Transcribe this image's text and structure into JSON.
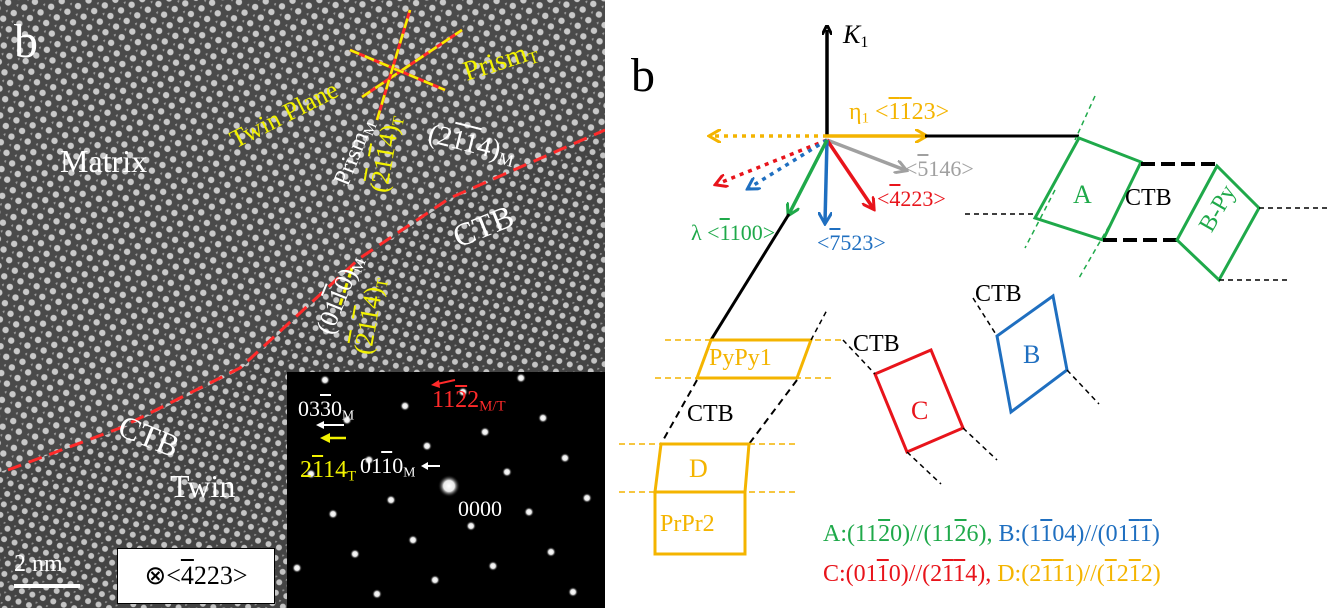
{
  "left_panel": {
    "panel_label": "b",
    "matrix_label": "Matrix",
    "twin_label": "Twin",
    "ctb_label_1": "CTB",
    "ctb_label_2": "CTB",
    "twin_plane_label": "Twin Plane",
    "prism_m_main": "Prism",
    "prism_m_sub": "M",
    "prism_t_main": "Prism",
    "prism_t_sub": "T",
    "plane_21b14_m": {
      "a": "(2",
      "b": "1",
      "c": "1",
      "d": "4)",
      "sub": "M"
    },
    "plane_2b11b4_t_top": {
      "a": "(",
      "b": "2",
      "c": "1",
      "d": "1",
      "e": "4)",
      "sub": "T"
    },
    "plane_01b10_m": {
      "a": "(01",
      "b": "1",
      "c": "0)",
      "sub": "M"
    },
    "plane_2b11b4_t_bottom": {
      "a": "(",
      "b": "2",
      "c": "1",
      "d": "1",
      "e": "4)",
      "sub": "T"
    },
    "scale_bar": "2 nm",
    "zone_axis": {
      "a": "⊗<",
      "b": "4",
      "c": "223>"
    },
    "colors": {
      "overlay_white": "#ffffff",
      "overlay_yellow": "#f2f200",
      "overlay_red": "#ff2a2a"
    }
  },
  "diffraction": {
    "spot_0000": "0000",
    "spot_01b10": {
      "a": "01",
      "b": "1",
      "c": "0",
      "sub": "M"
    },
    "spot_03b30": {
      "a": "03",
      "b": "3",
      "c": "0",
      "sub": "M"
    },
    "spot_2b114": {
      "a": "2",
      "b": "1",
      "c": "1",
      "d": "4",
      "sub": "T"
    },
    "spot_11b22": {
      "a": "11",
      "b": "2",
      "c": "2",
      "sub": "M/T"
    }
  },
  "right_panel": {
    "panel_label": "b",
    "k1_main": "K",
    "k1_sub": "1",
    "eta1": {
      "a": "η",
      "sub": "1",
      "b": " <",
      "c": "1",
      "d": "1",
      "e": "23>"
    },
    "dir_5146": {
      "a": "<",
      "b": "5",
      "c": "146>"
    },
    "dir_4223": {
      "a": "<",
      "b": "4",
      "c": "223>"
    },
    "dir_7523": {
      "a": "<",
      "b": "7",
      "c": "523>"
    },
    "lambda": {
      "a": "λ <",
      "b": "1",
      "c": "100>"
    },
    "box_a": "A",
    "box_b": "B",
    "box_c": "C",
    "box_d": "D",
    "box_bpy": "B-Py",
    "box_pypy1": "PyPy1",
    "box_prpr2": "PrPr2",
    "ctb_1": "CTB",
    "ctb_2": "CTB",
    "ctb_3": "CTB",
    "ctb_4": "CTB",
    "legend_line1": {
      "a_label": "A:(11",
      "a_b": "2",
      "a_c": "0)//(11",
      "a_d": "2",
      "a_e": "6), ",
      "b_label": "B:(1",
      "b_b": "1",
      "b_c": "04)//(01",
      "b_d": "1",
      "b_e": "1",
      "b_f": ")"
    },
    "legend_line2": {
      "c_label": "C:(01",
      "c_b": "1",
      "c_c": "0)//(2",
      "c_d": "1",
      "c_e": "1",
      "c_f": "4), ",
      "d_label": "D:(2",
      "d_b": "1",
      "d_c": "1",
      "d_d": "1",
      "d_e": ")//(",
      "d_f": "1",
      "d_g": "2",
      "d_h": "1",
      "d_i": "2",
      "d_j": ")"
    },
    "colors": {
      "green": "#1fa94a",
      "blue": "#1f6fc0",
      "red": "#e8141b",
      "orange": "#f4b400",
      "gray": "#a0a0a0",
      "black": "#000000"
    }
  }
}
